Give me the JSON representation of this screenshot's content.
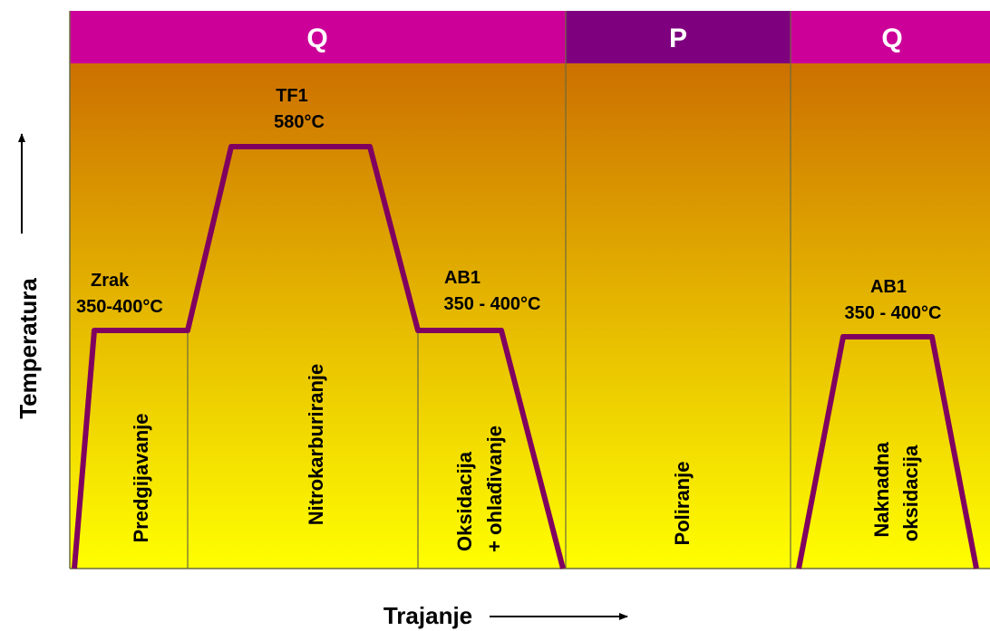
{
  "axes": {
    "y_label": "Temperatura",
    "x_label": "Trajanje"
  },
  "bands": [
    {
      "label": "Q",
      "color": "#cc0099"
    },
    {
      "label": "P",
      "color": "#7f007f"
    },
    {
      "label": "Q",
      "color": "#cc0099"
    }
  ],
  "phases": [
    {
      "label": "Predgijavanje"
    },
    {
      "label": "Nitrokarburiranje"
    },
    {
      "label": "Oksidacija",
      "label2": "+ ohlađivanje"
    },
    {
      "label": "Poliranje"
    },
    {
      "label": "Naknadna",
      "label2": "oksidacija"
    }
  ],
  "annotations": {
    "zrak": {
      "line1": "Zrak",
      "line2": "350-400°C"
    },
    "tf1": {
      "line1": "TF1",
      "line2": "580°C"
    },
    "ab1_left": {
      "line1": "AB1",
      "line2": "350 - 400°C"
    },
    "ab1_right": {
      "line1": "AB1",
      "line2": "350 - 400°C"
    }
  },
  "colors": {
    "gradient_top": "#cc7000",
    "gradient_bottom": "#ffff00",
    "curve": "#800060",
    "divider": "#6b6b40"
  }
}
